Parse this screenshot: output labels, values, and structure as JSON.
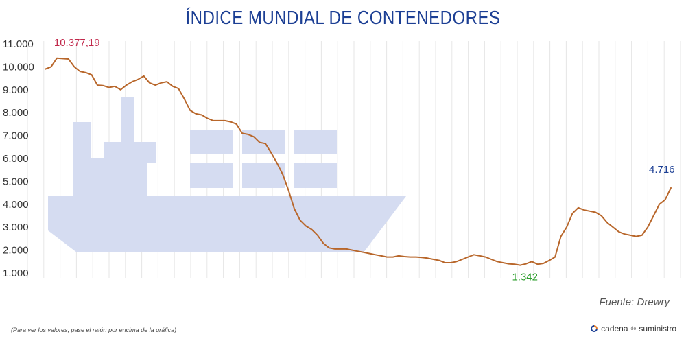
{
  "page": {
    "title": "ÍNDICE MUNDIAL DE CONTENEDORES",
    "source": "Fuente: Drewry",
    "footnote": "(Para ver los valores, pase el ratón por encima de la gráfica)",
    "brand": {
      "part1": "cadena",
      "part2": "de",
      "part3": "suministro"
    }
  },
  "colors": {
    "line": "#b8662a",
    "title": "#1c3f94",
    "ship": "#d5dcf1",
    "max": "#c1274a",
    "min": "#2a9d2a",
    "last": "#1c3f94",
    "grid": "#e6e6e6"
  },
  "icons": {
    "ship": "container-ship-illustration",
    "brand": "refresh-circle-icon"
  },
  "chart_data": {
    "type": "line",
    "title": "ÍNDICE MUNDIAL DE CONTENEDORES",
    "xlabel": "",
    "ylabel": "",
    "ylim": [
      1000,
      11000
    ],
    "yticks": [
      1000,
      2000,
      3000,
      4000,
      5000,
      6000,
      7000,
      8000,
      9000,
      10000,
      11000
    ],
    "ytick_labels": [
      "1.000",
      "2.000",
      "3.000",
      "4.000",
      "5.000",
      "6.000",
      "7.000",
      "8.000",
      "9.000",
      "10.000",
      "11.000"
    ],
    "x_labels_shown": false,
    "grid": true,
    "values": [
      9900,
      10000,
      10377,
      10360,
      10340,
      10000,
      9800,
      9750,
      9650,
      9200,
      9180,
      9100,
      9150,
      9000,
      9200,
      9350,
      9450,
      9600,
      9300,
      9200,
      9300,
      9350,
      9150,
      9050,
      8600,
      8100,
      7950,
      7900,
      7750,
      7650,
      7650,
      7650,
      7600,
      7500,
      7100,
      7050,
      6950,
      6700,
      6650,
      6250,
      5800,
      5300,
      4600,
      3800,
      3300,
      3050,
      2900,
      2650,
      2300,
      2100,
      2050,
      2050,
      2050,
      2000,
      1950,
      1900,
      1850,
      1800,
      1750,
      1700,
      1700,
      1750,
      1720,
      1700,
      1700,
      1680,
      1650,
      1600,
      1550,
      1450,
      1450,
      1500,
      1600,
      1700,
      1800,
      1750,
      1700,
      1600,
      1500,
      1450,
      1400,
      1380,
      1342,
      1400,
      1500,
      1380,
      1420,
      1550,
      1700,
      2600,
      3000,
      3600,
      3850,
      3750,
      3700,
      3650,
      3500,
      3200,
      3000,
      2800,
      2700,
      2650,
      2600,
      2650,
      3000,
      3500,
      4000,
      4200,
      4716
    ],
    "annotations": [
      {
        "label": "10.377,19",
        "index": 2,
        "value": 10377,
        "role": "max"
      },
      {
        "label": "1.342",
        "index": 82,
        "value": 1342,
        "role": "min"
      },
      {
        "label": "4.716",
        "index": 108,
        "value": 4716,
        "role": "last"
      }
    ]
  }
}
